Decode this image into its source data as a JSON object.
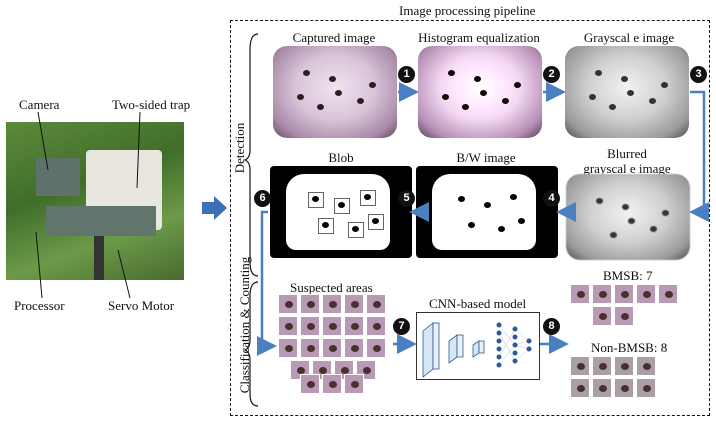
{
  "pipeline_title": "Image processing pipeline",
  "device": {
    "camera_label": "Camera",
    "trap_label": "Two-sided trap",
    "processor_label": "Processor",
    "servo_label": "Servo Motor"
  },
  "stages": {
    "detection_label": "Detection",
    "classification_label": "Classification & Counting"
  },
  "steps": {
    "captured": "Captured   image",
    "histogram": "Histogram   equalization",
    "grayscale": "Grayscal e image",
    "blurred_line1": "Blurred",
    "blurred_line2": "grayscal e image",
    "bw": "B/W image",
    "blob": "Blob",
    "suspected": "Suspected areas",
    "cnn": "CNN-based model",
    "bmsb": "BMSB: 7",
    "non_bmsb": "Non-BMSB: 8"
  },
  "step_numbers": [
    "1",
    "2",
    "3",
    "4",
    "5",
    "6",
    "7",
    "8"
  ],
  "colors": {
    "arrow": "#4a7fc1",
    "border": "#111111"
  }
}
